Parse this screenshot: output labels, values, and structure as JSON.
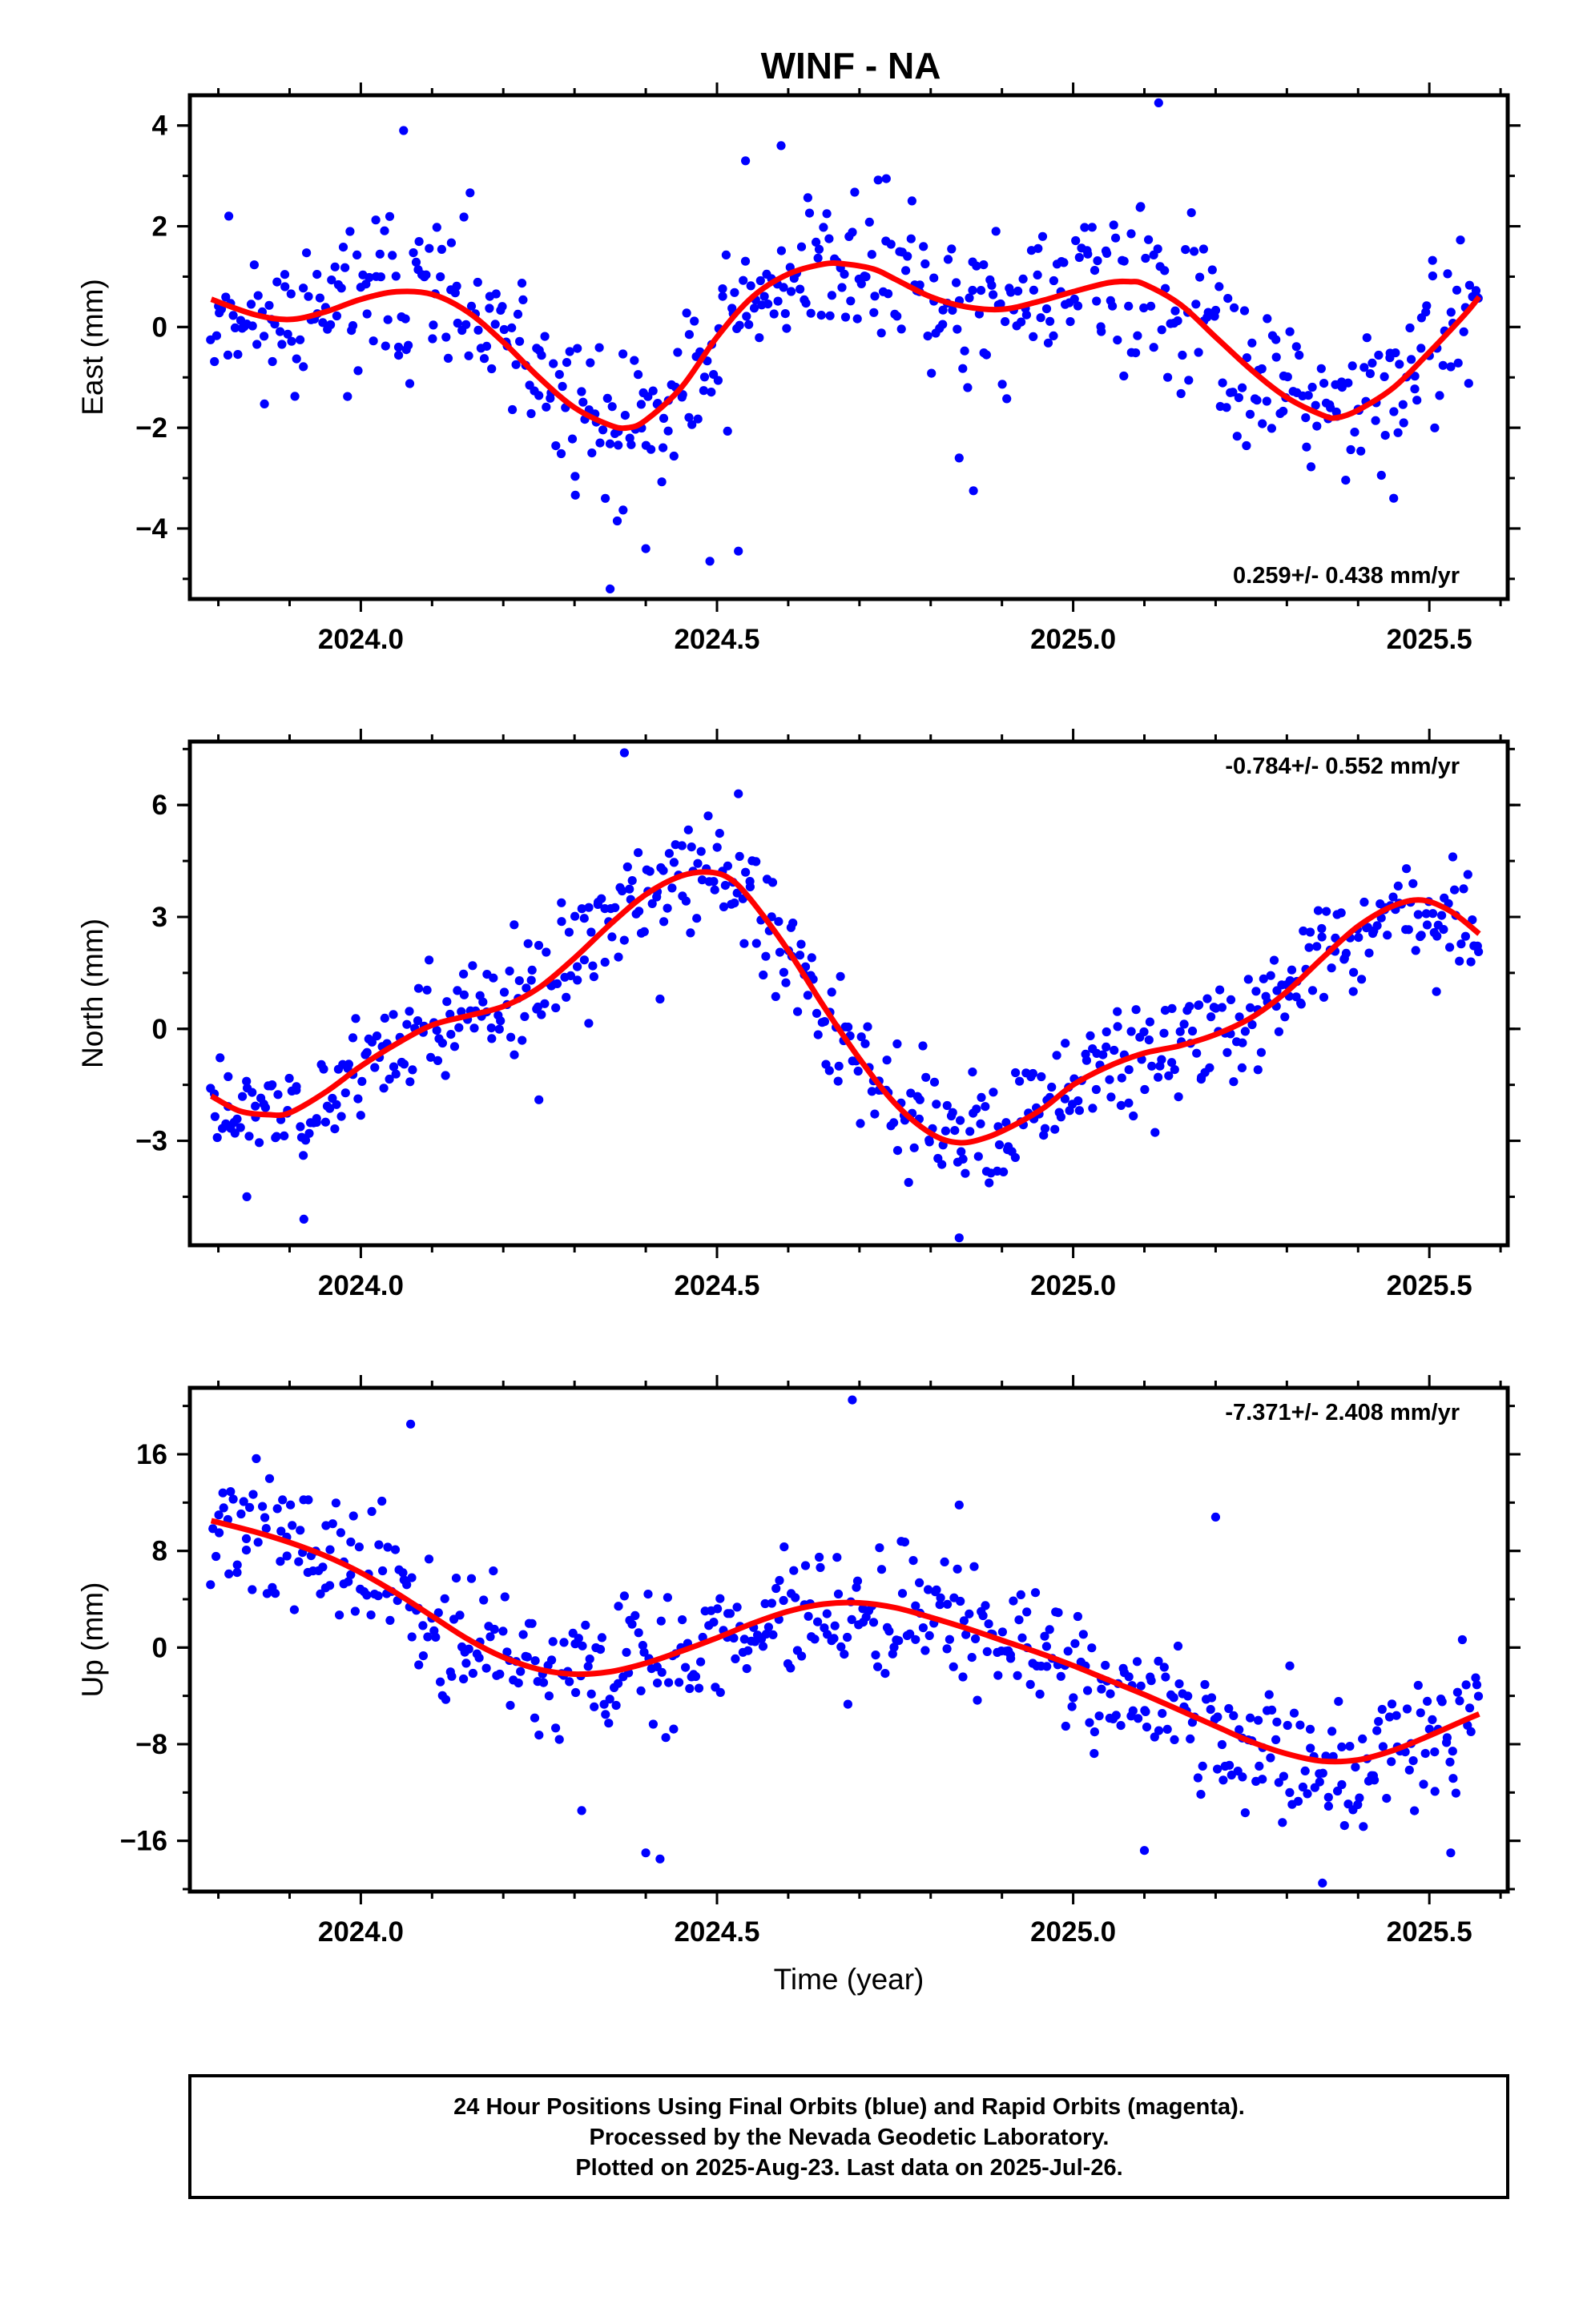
{
  "title": "WINF - NA",
  "colors": {
    "final_orbits": "#0000ff",
    "fit": "#ff0000",
    "frame": "#000000"
  },
  "chart_data": [
    {
      "type": "scatter",
      "ylabel": "East (mm)",
      "xlabel": "",
      "rate_label": "0.259+/- 0.438 mm/yr",
      "xlim": [
        2023.76,
        2025.61
      ],
      "ylim": [
        -5.4,
        4.6
      ],
      "x_ticks": [
        2024.0,
        2024.5,
        2025.0,
        2025.5
      ],
      "x_tick_labels": [
        "2024.0",
        "2024.5",
        "2025.0",
        "2025.5"
      ],
      "y_ticks": [
        -4,
        -2,
        0,
        2,
        4
      ],
      "y_tick_labels": [
        "−4",
        "−2",
        "0",
        "2",
        "4"
      ],
      "fit": {
        "x": [
          2023.79,
          2023.85,
          2023.9,
          2023.95,
          2024.0,
          2024.05,
          2024.1,
          2024.15,
          2024.2,
          2024.25,
          2024.3,
          2024.35,
          2024.375,
          2024.4,
          2024.45,
          2024.5,
          2024.55,
          2024.6,
          2024.65,
          2024.68,
          2024.72,
          2024.75,
          2024.8,
          2024.85,
          2024.9,
          2024.95,
          2025.0,
          2025.05,
          2025.08,
          2025.1,
          2025.15,
          2025.2,
          2025.25,
          2025.3,
          2025.35,
          2025.37,
          2025.4,
          2025.45,
          2025.5,
          2025.55,
          2025.57
        ],
        "y": [
          0.55,
          0.25,
          0.15,
          0.3,
          0.55,
          0.7,
          0.65,
          0.3,
          -0.3,
          -1.0,
          -1.6,
          -1.95,
          -2.0,
          -1.85,
          -1.2,
          -0.2,
          0.6,
          1.05,
          1.25,
          1.25,
          1.15,
          0.95,
          0.6,
          0.4,
          0.35,
          0.5,
          0.7,
          0.88,
          0.9,
          0.85,
          0.45,
          -0.2,
          -0.85,
          -1.4,
          -1.75,
          -1.8,
          -1.65,
          -1.2,
          -0.5,
          0.25,
          0.6
        ]
      },
      "sample": {
        "trend": {
          "x": [
            2023.79,
            2023.85,
            2023.9,
            2023.95,
            2024.0,
            2024.05,
            2024.1,
            2024.15,
            2024.2,
            2024.25,
            2024.3,
            2024.35,
            2024.375,
            2024.4,
            2024.45,
            2024.5,
            2024.55,
            2024.6,
            2024.65,
            2024.68,
            2024.72,
            2024.75,
            2024.8,
            2024.85,
            2024.9,
            2024.95,
            2025.0,
            2025.05,
            2025.08,
            2025.1,
            2025.15,
            2025.2,
            2025.25,
            2025.3,
            2025.35,
            2025.37,
            2025.4,
            2025.45,
            2025.5,
            2025.55,
            2025.57
          ],
          "y": [
            0.55,
            0.25,
            0.15,
            0.3,
            0.55,
            0.7,
            0.65,
            0.3,
            -0.3,
            -1.0,
            -1.6,
            -1.95,
            -2.0,
            -1.85,
            -1.2,
            -0.2,
            0.6,
            1.05,
            1.25,
            1.25,
            1.15,
            0.95,
            0.6,
            0.4,
            0.35,
            0.5,
            0.7,
            0.88,
            0.9,
            0.85,
            0.45,
            -0.2,
            -0.85,
            -1.4,
            -1.75,
            -1.8,
            -1.65,
            -1.2,
            -0.5,
            0.25,
            0.6
          ]
        },
        "spread": 1.15,
        "clip": [
          -5.3,
          4.5
        ],
        "seed": 11,
        "count": 560,
        "x_start": 2023.79,
        "x_end": 2025.57,
        "outliers": [
          [
            2024.06,
            3.9
          ],
          [
            2024.35,
            -5.2
          ],
          [
            2024.49,
            -4.65
          ],
          [
            2024.53,
            -4.45
          ],
          [
            2024.59,
            3.6
          ],
          [
            2024.84,
            -2.6
          ],
          [
            2024.86,
            -3.25
          ],
          [
            2025.12,
            4.45
          ],
          [
            2025.45,
            -3.4
          ],
          [
            2024.4,
            -4.4
          ],
          [
            2024.36,
            -3.85
          ],
          [
            2024.54,
            3.3
          ]
        ]
      }
    },
    {
      "type": "scatter",
      "ylabel": "North (mm)",
      "xlabel": "",
      "rate_label": "-0.784+/- 0.552 mm/yr",
      "xlim": [
        2023.76,
        2025.61
      ],
      "ylim": [
        -5.8,
        7.7
      ],
      "x_ticks": [
        2024.0,
        2024.5,
        2025.0,
        2025.5
      ],
      "x_tick_labels": [
        "2024.0",
        "2024.5",
        "2025.0",
        "2025.5"
      ],
      "y_ticks": [
        -3,
        0,
        3,
        6
      ],
      "y_tick_labels": [
        "−3",
        "0",
        "3",
        "6"
      ],
      "fit": {
        "x": [
          2023.79,
          2023.83,
          2023.87,
          2023.9,
          2023.95,
          2024.0,
          2024.05,
          2024.1,
          2024.15,
          2024.2,
          2024.25,
          2024.3,
          2024.35,
          2024.4,
          2024.45,
          2024.49,
          2024.52,
          2024.55,
          2024.6,
          2024.65,
          2024.7,
          2024.75,
          2024.8,
          2024.84,
          2024.88,
          2024.92,
          2024.96,
          2025.0,
          2025.05,
          2025.1,
          2025.15,
          2025.2,
          2025.25,
          2025.3,
          2025.35,
          2025.4,
          2025.45,
          2025.49,
          2025.53,
          2025.57
        ],
        "y": [
          -1.8,
          -2.2,
          -2.3,
          -2.25,
          -1.7,
          -1.0,
          -0.4,
          0.1,
          0.35,
          0.6,
          1.1,
          1.9,
          2.8,
          3.6,
          4.1,
          4.2,
          4.0,
          3.4,
          2.1,
          0.6,
          -0.8,
          -2.0,
          -2.8,
          -3.05,
          -2.9,
          -2.55,
          -2.1,
          -1.5,
          -1.0,
          -0.65,
          -0.45,
          -0.15,
          0.3,
          1.0,
          1.9,
          2.75,
          3.3,
          3.45,
          3.15,
          2.55
        ]
      },
      "sample": {
        "trend": {
          "x": [
            2023.79,
            2023.83,
            2023.87,
            2023.9,
            2023.95,
            2024.0,
            2024.05,
            2024.1,
            2024.15,
            2024.2,
            2024.25,
            2024.3,
            2024.35,
            2024.4,
            2024.45,
            2024.49,
            2024.52,
            2024.55,
            2024.6,
            2024.65,
            2024.7,
            2024.75,
            2024.8,
            2024.84,
            2024.88,
            2024.92,
            2024.96,
            2025.0,
            2025.05,
            2025.1,
            2025.15,
            2025.2,
            2025.25,
            2025.3,
            2025.35,
            2025.4,
            2025.45,
            2025.49,
            2025.53,
            2025.57
          ],
          "y": [
            -1.8,
            -2.2,
            -2.3,
            -2.25,
            -1.7,
            -1.0,
            -0.4,
            0.1,
            0.35,
            0.6,
            1.1,
            1.9,
            2.8,
            3.6,
            4.1,
            4.2,
            4.0,
            3.4,
            2.1,
            0.6,
            -0.8,
            -2.0,
            -2.8,
            -3.05,
            -2.9,
            -2.55,
            -2.1,
            -1.5,
            -1.0,
            -0.65,
            -0.45,
            -0.15,
            0.3,
            1.0,
            1.9,
            2.75,
            3.3,
            3.45,
            3.15,
            2.55
          ]
        },
        "spread": 1.05,
        "clip": [
          -5.6,
          7.5
        ],
        "seed": 23,
        "count": 560,
        "x_start": 2023.79,
        "x_end": 2025.57,
        "outliers": [
          [
            2024.37,
            7.4
          ],
          [
            2024.32,
            0.15
          ],
          [
            2024.42,
            0.8
          ],
          [
            2024.53,
            6.3
          ],
          [
            2024.84,
            -5.6
          ],
          [
            2023.92,
            -5.1
          ],
          [
            2023.84,
            -4.5
          ],
          [
            2024.25,
            -1.9
          ],
          [
            2025.18,
            -1.3
          ],
          [
            2025.51,
            1.0
          ]
        ]
      }
    },
    {
      "type": "scatter",
      "ylabel": "Up (mm)",
      "xlabel": "Time (year)",
      "rate_label": "-7.371+/- 2.408 mm/yr",
      "xlim": [
        2023.76,
        2025.61
      ],
      "ylim": [
        -20.2,
        21.5
      ],
      "x_ticks": [
        2024.0,
        2024.5,
        2025.0,
        2025.5
      ],
      "x_tick_labels": [
        "2024.0",
        "2024.5",
        "2025.0",
        "2025.5"
      ],
      "y_ticks": [
        -16,
        -8,
        0,
        8,
        16
      ],
      "y_tick_labels": [
        "−16",
        "−8",
        "0",
        "8",
        "16"
      ],
      "fit": {
        "x": [
          2023.79,
          2023.85,
          2023.9,
          2023.95,
          2024.0,
          2024.05,
          2024.1,
          2024.15,
          2024.2,
          2024.25,
          2024.3,
          2024.35,
          2024.4,
          2024.45,
          2024.5,
          2024.55,
          2024.6,
          2024.65,
          2024.7,
          2024.75,
          2024.8,
          2024.85,
          2024.9,
          2024.95,
          2025.0,
          2025.05,
          2025.1,
          2025.15,
          2025.2,
          2025.25,
          2025.3,
          2025.35,
          2025.4,
          2025.45,
          2025.5,
          2025.55,
          2025.57
        ],
        "y": [
          10.5,
          9.6,
          8.7,
          7.6,
          6.2,
          4.5,
          2.6,
          0.7,
          -0.8,
          -1.8,
          -2.2,
          -2.0,
          -1.3,
          -0.3,
          0.8,
          2.0,
          3.0,
          3.6,
          3.7,
          3.3,
          2.5,
          1.6,
          0.6,
          -0.4,
          -1.5,
          -2.7,
          -3.9,
          -5.2,
          -6.5,
          -7.8,
          -8.8,
          -9.4,
          -9.3,
          -8.5,
          -7.3,
          -6.0,
          -5.5
        ]
      },
      "sample": {
        "trend": {
          "x": [
            2023.79,
            2023.85,
            2023.9,
            2023.95,
            2024.0,
            2024.05,
            2024.1,
            2024.15,
            2024.2,
            2024.25,
            2024.3,
            2024.35,
            2024.4,
            2024.45,
            2024.5,
            2024.55,
            2024.6,
            2024.65,
            2024.7,
            2024.75,
            2024.8,
            2024.85,
            2024.9,
            2024.95,
            2025.0,
            2025.05,
            2025.1,
            2025.15,
            2025.2,
            2025.25,
            2025.3,
            2025.35,
            2025.4,
            2025.45,
            2025.5,
            2025.55,
            2025.57
          ],
          "y": [
            10.5,
            9.6,
            8.7,
            7.6,
            6.2,
            4.5,
            2.6,
            0.7,
            -0.8,
            -1.8,
            -2.2,
            -2.0,
            -1.3,
            -0.3,
            0.8,
            2.0,
            3.0,
            3.6,
            3.7,
            3.3,
            2.5,
            1.6,
            0.6,
            -0.4,
            -1.5,
            -2.7,
            -3.9,
            -5.2,
            -6.5,
            -7.8,
            -8.8,
            -9.4,
            -9.3,
            -8.5,
            -7.3,
            -6.0,
            -5.5
          ]
        },
        "spread": 3.9,
        "clip": [
          -20.0,
          21.0
        ],
        "seed": 37,
        "count": 560,
        "x_start": 2023.79,
        "x_end": 2025.57,
        "outliers": [
          [
            2024.69,
            20.5
          ],
          [
            2025.2,
            10.8
          ],
          [
            2024.4,
            -17.0
          ],
          [
            2024.42,
            -17.5
          ],
          [
            2025.35,
            -19.5
          ],
          [
            2024.07,
            18.5
          ],
          [
            2025.1,
            -16.8
          ],
          [
            2025.53,
            -17.0
          ],
          [
            2024.31,
            -13.5
          ],
          [
            2024.84,
            11.8
          ]
        ]
      }
    }
  ],
  "caption": {
    "line1": "24 Hour Positions Using Final Orbits (blue) and Rapid Orbits (magenta).",
    "line2": "Processed by the Nevada Geodetic Laboratory.",
    "line3": "Plotted on 2025-Aug-23. Last data on 2025-Jul-26."
  }
}
